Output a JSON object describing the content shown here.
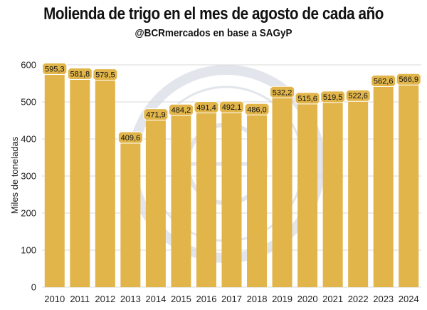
{
  "chart_data": {
    "type": "bar",
    "title": "Molienda de trigo en el mes de agosto de cada año",
    "subtitle": "@BCRmercados en base a SAGyP",
    "xlabel": "",
    "ylabel": "Miles de toneladas",
    "ylim": [
      0,
      600
    ],
    "yticks": [
      0,
      100,
      200,
      300,
      400,
      500,
      600
    ],
    "grid": true,
    "legend": "none",
    "categories": [
      "2010",
      "2011",
      "2012",
      "2013",
      "2014",
      "2015",
      "2016",
      "2017",
      "2018",
      "2019",
      "2020",
      "2021",
      "2022",
      "2023",
      "2024"
    ],
    "values": [
      595.3,
      581.8,
      579.5,
      409.6,
      471.9,
      484.2,
      491.4,
      492.1,
      486.0,
      532.2,
      515.6,
      519.5,
      522.6,
      562.6,
      566.9
    ],
    "value_labels": [
      "595,3",
      "581,8",
      "579,5",
      "409,6",
      "471,9",
      "484,2",
      "491,4",
      "492,1",
      "486,0",
      "532,2",
      "515,6",
      "519,5",
      "522,6",
      "562,6",
      "566,9"
    ],
    "bar_color": "#E1B54A",
    "label_box_color": "#E1B54A",
    "grid_color": "#D9D9D9"
  }
}
